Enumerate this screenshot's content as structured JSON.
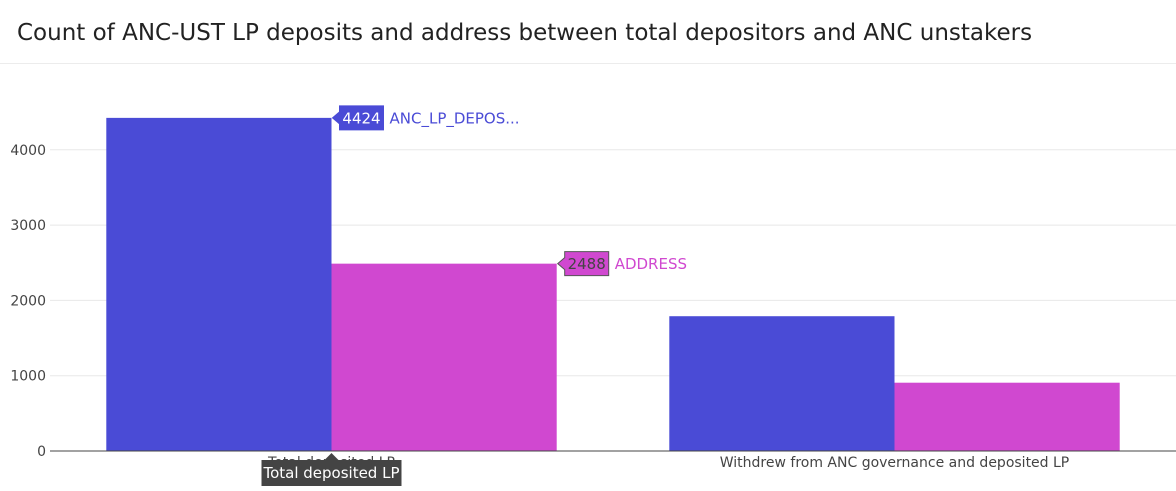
{
  "title": "Count of ANC-UST LP deposits and address between total depositors and ANC unstakers",
  "chart_data": {
    "type": "bar",
    "categories": [
      "Total deposited LP",
      "Withdrew from ANC governance and deposited LP"
    ],
    "series": [
      {
        "name": "ANC_LP_DEPOSITS",
        "values": [
          4424,
          1790
        ],
        "color": "#4a4bd6"
      },
      {
        "name": "ADDRESS",
        "values": [
          2488,
          907
        ],
        "color": "#d048d0"
      }
    ],
    "ylim": [
      0,
      5000
    ],
    "yticks": [
      0,
      1000,
      2000,
      3000,
      4000
    ],
    "grid": true,
    "hover": {
      "category_label": "Total deposited LP",
      "labels": [
        {
          "value": "4424",
          "name": "ANC_LP_DEPOS..."
        },
        {
          "value": "2488",
          "name": "ADDRESS"
        }
      ]
    }
  }
}
